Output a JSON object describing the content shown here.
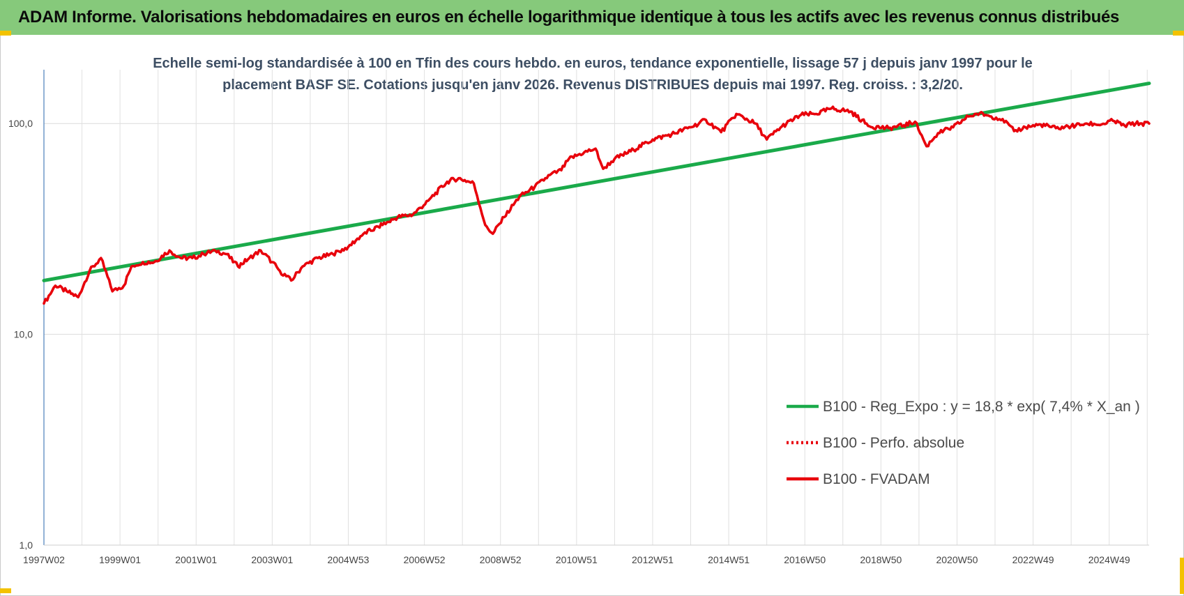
{
  "banner": {
    "title": "ADAM Informe. Valorisations hebdomadaires en euros en échelle logarithmique identique à tous les actifs avec les revenus connus distribués"
  },
  "colors": {
    "banner_bg": "#86c97b",
    "corner_marks": "#f3c200",
    "trend_line": "#1aaa4a",
    "fvadam_line": "#e8000b",
    "perfo_line": "#e8000b",
    "title_text": "#3d4e63"
  },
  "chart_data": {
    "type": "line",
    "title_line1": "Echelle semi-log standardisée à 100 en Tfin des cours hebdo. en euros, tendance exponentielle, lissage 57 j depuis janv 1997 pour le",
    "title_line2": "placement BASF SE. Cotations jusqu'en janv 2026. Revenus DISTRIBUES depuis mai 1997. Reg. croiss. : 3,2/20.",
    "y_scale": "log",
    "ylim": [
      1,
      180
    ],
    "y_ticks": [
      1,
      10,
      100
    ],
    "y_tick_labels": [
      "1,0",
      "10,0",
      "100,0"
    ],
    "x_range_years": [
      1997.0,
      2026.05
    ],
    "x_ticks": [
      {
        "label": "1997W02",
        "year": 1997.0
      },
      {
        "label": "1999W01",
        "year": 1999.0
      },
      {
        "label": "2001W01",
        "year": 2001.0
      },
      {
        "label": "2003W01",
        "year": 2003.0
      },
      {
        "label": "2004W53",
        "year": 2005.0
      },
      {
        "label": "2006W52",
        "year": 2007.0
      },
      {
        "label": "2008W52",
        "year": 2009.0
      },
      {
        "label": "2010W51",
        "year": 2011.0
      },
      {
        "label": "2012W51",
        "year": 2013.0
      },
      {
        "label": "2014W51",
        "year": 2015.0
      },
      {
        "label": "2016W50",
        "year": 2017.0
      },
      {
        "label": "2018W50",
        "year": 2019.0
      },
      {
        "label": "2020W50",
        "year": 2021.0
      },
      {
        "label": "2022W49",
        "year": 2023.0
      },
      {
        "label": "2024W49",
        "year": 2025.0
      }
    ],
    "grid": true,
    "legend_position": "bottom-right",
    "series": [
      {
        "name": "B100 - Reg_Expo : y = 18,8 * exp( 7,4% *  X_an )",
        "style": "solid",
        "color": "#1aaa4a",
        "x": [
          1997.0,
          2026.05
        ],
        "values": [
          18,
          155
        ]
      },
      {
        "name": "B100 - Perfo. absolue",
        "style": "dotted",
        "color": "#e8000b",
        "x": [],
        "values": []
      },
      {
        "name": "B100 - FVADAM",
        "style": "solid",
        "color": "#e8000b",
        "x": [
          1997.0,
          1997.3,
          1997.6,
          1997.9,
          1998.2,
          1998.5,
          1998.8,
          1999.1,
          1999.3,
          1999.6,
          1999.9,
          2000.3,
          2000.6,
          2000.9,
          2001.2,
          2001.5,
          2001.8,
          2002.1,
          2002.4,
          2002.7,
          2003.0,
          2003.2,
          2003.5,
          2003.8,
          2004.2,
          2004.6,
          2005.0,
          2005.4,
          2005.9,
          2006.3,
          2006.7,
          2007.1,
          2007.6,
          2007.9,
          2008.3,
          2008.6,
          2008.8,
          2009.1,
          2009.5,
          2009.9,
          2010.3,
          2010.6,
          2010.8,
          2011.2,
          2011.5,
          2011.7,
          2012.0,
          2012.5,
          2013.0,
          2013.5,
          2014.0,
          2014.4,
          2014.8,
          2015.2,
          2015.7,
          2016.0,
          2016.4,
          2016.9,
          2017.3,
          2017.7,
          2018.2,
          2018.7,
          2019.2,
          2019.6,
          2019.9,
          2020.2,
          2020.5,
          2020.9,
          2021.3,
          2021.6,
          2021.9,
          2022.2,
          2022.5,
          2022.8,
          2023.2,
          2023.6,
          2024.0,
          2024.4,
          2024.8,
          2025.1,
          2025.4,
          2025.7,
          2026.05
        ],
        "values": [
          14,
          17,
          16,
          15,
          20,
          23,
          16,
          17,
          21,
          22,
          22,
          25,
          23,
          23,
          24,
          25,
          24,
          21,
          23,
          25,
          22,
          20,
          18,
          21,
          23,
          24,
          26,
          30,
          33,
          36,
          37,
          43,
          53,
          55,
          52,
          33,
          30,
          36,
          45,
          50,
          57,
          60,
          68,
          73,
          76,
          61,
          68,
          75,
          84,
          89,
          96,
          104,
          91,
          111,
          100,
          84,
          97,
          110,
          111,
          118,
          114,
          97,
          95,
          98,
          102,
          78,
          90,
          96,
          108,
          112,
          108,
          105,
          92,
          96,
          99,
          95,
          97,
          100,
          99,
          103,
          98,
          100,
          100
        ]
      }
    ]
  }
}
